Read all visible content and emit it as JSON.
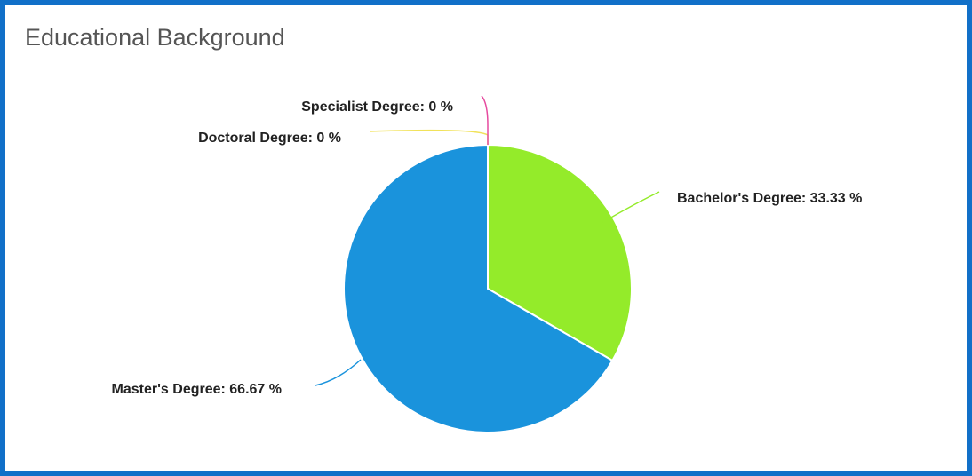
{
  "chart_data": {
    "type": "pie",
    "title": "Educational Background",
    "slices": [
      {
        "label": "Bachelor's Degree",
        "value": 33.33,
        "display": "Bachelor's Degree: 33.33 %",
        "color": "#94eb2a"
      },
      {
        "label": "Master's Degree",
        "value": 66.67,
        "display": "Master's Degree: 66.67 %",
        "color": "#1a93dc"
      },
      {
        "label": "Doctoral Degree",
        "value": 0,
        "display": "Doctoral Degree: 0 %",
        "color": "#f1e25a"
      },
      {
        "label": "Specialist Degree",
        "value": 0,
        "display": "Specialist Degree: 0 %",
        "color": "#e64a9f"
      }
    ]
  }
}
